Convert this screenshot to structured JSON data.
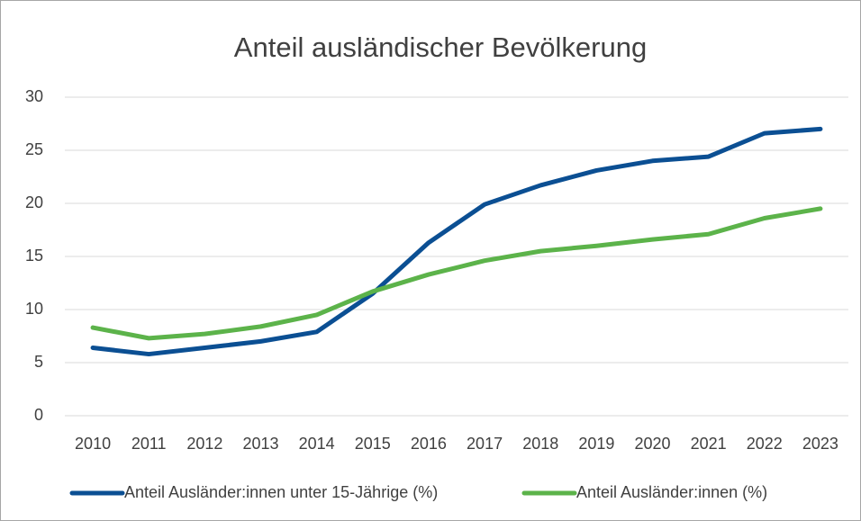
{
  "chart_data": {
    "type": "line",
    "title": "Anteil ausländischer Bevölkerung",
    "categories": [
      "2010",
      "2011",
      "2012",
      "2013",
      "2014",
      "2015",
      "2016",
      "2017",
      "2018",
      "2019",
      "2020",
      "2021",
      "2022",
      "2023"
    ],
    "series": [
      {
        "name": "Anteil Ausländer:innen unter 15-Jährige (%)",
        "color": "#0b4f93",
        "values": [
          6.4,
          5.8,
          6.4,
          7.0,
          7.9,
          11.5,
          16.3,
          19.9,
          21.7,
          23.1,
          24.0,
          24.4,
          26.6,
          27.0
        ]
      },
      {
        "name": "Anteil Ausländer:innen (%)",
        "color": "#5cb34a",
        "values": [
          8.3,
          7.3,
          7.7,
          8.4,
          9.5,
          11.7,
          13.3,
          14.6,
          15.5,
          16.0,
          16.6,
          17.1,
          18.6,
          19.5
        ]
      }
    ],
    "ylim": [
      0,
      30
    ],
    "yticks": [
      0,
      5,
      10,
      15,
      20,
      25,
      30
    ],
    "grid": true,
    "legend": "bottom"
  }
}
